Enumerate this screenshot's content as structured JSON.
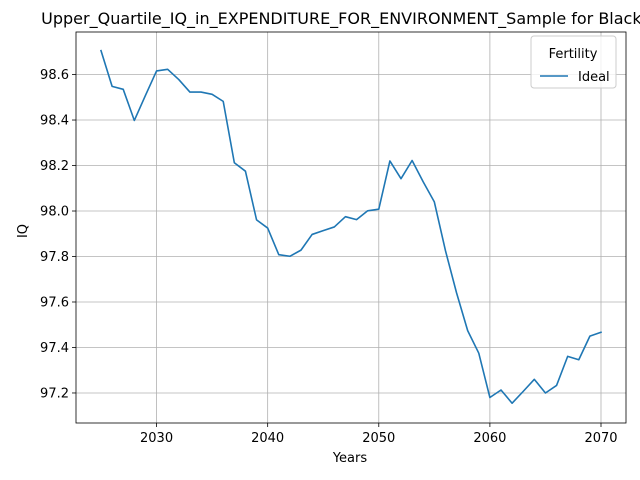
{
  "chart_data": {
    "type": "line",
    "title": "Upper_Quartile_IQ_in_EXPENDITURE_FOR_ENVIRONMENT_Sample for Black_F",
    "xlabel": "Years",
    "ylabel": "IQ",
    "xlim": [
      2022.75,
      2072.25
    ],
    "ylim": [
      97.068,
      98.787
    ],
    "x_ticks": [
      2030,
      2040,
      2050,
      2060,
      2070
    ],
    "y_ticks": [
      97.2,
      97.4,
      97.6,
      97.8,
      98.0,
      98.2,
      98.4,
      98.6
    ],
    "grid": true,
    "legend": {
      "title": "Fertility",
      "placement": "top-right"
    },
    "series": [
      {
        "name": "Ideal",
        "color": "#1f77b4",
        "x": [
          2025,
          2026,
          2027,
          2028,
          2029,
          2030,
          2031,
          2032,
          2033,
          2034,
          2035,
          2036,
          2037,
          2038,
          2039,
          2040,
          2041,
          2042,
          2043,
          2044,
          2045,
          2046,
          2047,
          2048,
          2049,
          2050,
          2051,
          2052,
          2053,
          2054,
          2055,
          2056,
          2057,
          2058,
          2059,
          2060,
          2061,
          2062,
          2063,
          2064,
          2065,
          2066,
          2067,
          2068,
          2069,
          2070
        ],
        "values": [
          98.705,
          98.548,
          98.535,
          98.398,
          98.508,
          98.616,
          98.623,
          98.578,
          98.523,
          98.523,
          98.513,
          98.482,
          98.212,
          98.175,
          97.961,
          97.925,
          97.808,
          97.801,
          97.828,
          97.897,
          97.914,
          97.93,
          97.975,
          97.962,
          98.001,
          98.008,
          98.22,
          98.142,
          98.222,
          98.128,
          98.04,
          97.826,
          97.64,
          97.474,
          97.375,
          97.18,
          97.213,
          97.155,
          97.207,
          97.26,
          97.2,
          97.233,
          97.361,
          97.346,
          97.45,
          97.467
        ]
      }
    ]
  }
}
